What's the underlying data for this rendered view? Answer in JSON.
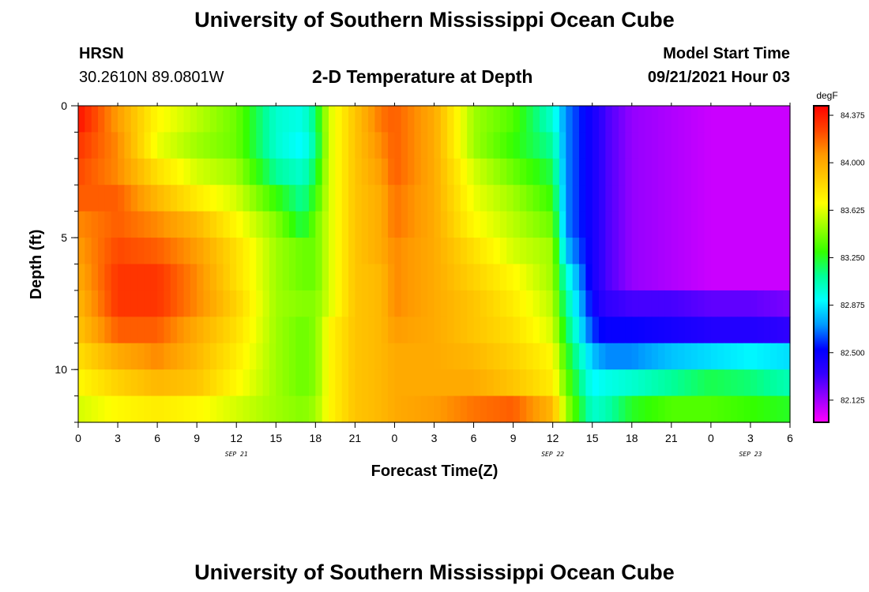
{
  "header": {
    "title": "University of Southern Mississippi Ocean Cube",
    "station_name": "HRSN",
    "station_coords": "30.2610N  89.0801W",
    "plot_title": "2-D Temperature at Depth",
    "model_label": "Model Start Time",
    "model_time": "09/21/2021 Hour 03"
  },
  "footer": {
    "title": "University of Southern Mississippi Ocean Cube"
  },
  "chart_data": {
    "type": "heatmap",
    "title": "2-D Temperature at Depth",
    "xlabel": "Forecast Time(Z)",
    "ylabel": "Depth (ft)",
    "x_ticks": [
      "0",
      "3",
      "6",
      "9",
      "12",
      "15",
      "18",
      "21",
      "0",
      "3",
      "6",
      "9",
      "12",
      "15",
      "18",
      "21",
      "0",
      "3",
      "6"
    ],
    "x_hours_range": [
      0,
      54
    ],
    "date_labels": [
      {
        "text": "SEP 21",
        "hour": 12
      },
      {
        "text": "SEP 22",
        "hour": 36
      },
      {
        "text": "SEP 23",
        "hour": 51
      }
    ],
    "y_ticks": [
      {
        "label": "0",
        "value": 0
      },
      {
        "label": "5",
        "value": 5
      },
      {
        "label": "10",
        "value": 10
      }
    ],
    "y_range": [
      0,
      12
    ],
    "depth_rows": 12,
    "colorbar": {
      "units": "degF",
      "labels": [
        "84.375",
        "84.000",
        "83.625",
        "83.250",
        "82.875",
        "82.500",
        "82.125"
      ],
      "label_values": [
        84.375,
        84.0,
        83.625,
        83.25,
        82.875,
        82.5,
        82.125
      ],
      "range": [
        81.95,
        84.45
      ],
      "colors": [
        "#ff00ff",
        "#9900ff",
        "#3300ff",
        "#0000ff",
        "#0099ff",
        "#00ffff",
        "#00ff99",
        "#33ff00",
        "#99ff00",
        "#ffff00",
        "#ffcc00",
        "#ff9900",
        "#ff4400",
        "#ff0000"
      ]
    },
    "hour_keypoints": [
      0,
      3,
      6,
      9,
      12,
      15,
      17,
      18,
      19,
      21,
      23,
      24,
      27,
      30,
      33,
      36,
      37,
      39,
      40,
      42,
      45,
      48,
      51,
      54
    ],
    "temperature_degF": [
      [
        84.4,
        84.05,
        83.7,
        83.55,
        83.4,
        83.0,
        82.95,
        83.15,
        83.6,
        83.9,
        84.15,
        84.2,
        84.0,
        83.5,
        83.35,
        83.0,
        82.7,
        82.45,
        82.3,
        82.15,
        82.1,
        82.05,
        82.05,
        82.05
      ],
      [
        84.3,
        84.1,
        83.65,
        83.5,
        83.4,
        83.0,
        82.9,
        83.1,
        83.6,
        83.9,
        84.1,
        84.2,
        84.0,
        83.5,
        83.3,
        83.1,
        82.7,
        82.45,
        82.3,
        82.15,
        82.1,
        82.05,
        82.05,
        82.05
      ],
      [
        84.25,
        84.1,
        83.8,
        83.6,
        83.5,
        83.1,
        83.0,
        83.2,
        83.6,
        83.9,
        84.05,
        84.2,
        84.0,
        83.6,
        83.4,
        83.2,
        82.7,
        82.45,
        82.3,
        82.15,
        82.1,
        82.05,
        82.05,
        82.05
      ],
      [
        84.2,
        84.2,
        83.95,
        83.75,
        83.6,
        83.3,
        83.1,
        83.3,
        83.6,
        83.9,
        84.0,
        84.15,
        84.0,
        83.65,
        83.5,
        83.3,
        82.7,
        82.45,
        82.3,
        82.15,
        82.1,
        82.05,
        82.05,
        82.05
      ],
      [
        84.1,
        84.2,
        84.1,
        83.95,
        83.7,
        83.45,
        83.2,
        83.4,
        83.6,
        83.9,
        84.0,
        84.15,
        84.0,
        83.7,
        83.55,
        83.4,
        82.7,
        82.45,
        82.3,
        82.15,
        82.1,
        82.05,
        82.05,
        82.05
      ],
      [
        84.05,
        84.25,
        84.2,
        84.05,
        83.8,
        83.5,
        83.4,
        83.4,
        83.6,
        83.9,
        84.0,
        84.1,
        84.0,
        83.8,
        83.6,
        83.5,
        82.8,
        82.45,
        82.3,
        82.15,
        82.1,
        82.05,
        82.05,
        82.05
      ],
      [
        84.0,
        84.3,
        84.3,
        84.1,
        83.8,
        83.5,
        83.4,
        83.4,
        83.6,
        83.9,
        83.95,
        84.1,
        84.0,
        83.85,
        83.7,
        83.5,
        83.0,
        82.45,
        82.3,
        82.15,
        82.1,
        82.05,
        82.05,
        82.05
      ],
      [
        83.95,
        84.3,
        84.3,
        84.1,
        83.85,
        83.5,
        83.45,
        83.45,
        83.6,
        83.9,
        83.95,
        84.1,
        84.0,
        83.9,
        83.75,
        83.55,
        83.1,
        82.5,
        82.35,
        82.3,
        82.3,
        82.25,
        82.25,
        82.2
      ],
      [
        83.9,
        84.2,
        84.2,
        84.0,
        83.8,
        83.5,
        83.4,
        83.45,
        83.7,
        83.9,
        83.95,
        84.05,
        84.0,
        83.9,
        83.8,
        83.6,
        83.2,
        82.6,
        82.5,
        82.5,
        82.45,
        82.4,
        82.4,
        82.35
      ],
      [
        83.8,
        84.0,
        84.1,
        83.95,
        83.75,
        83.5,
        83.4,
        83.45,
        83.7,
        83.9,
        83.95,
        84.0,
        84.0,
        83.95,
        83.85,
        83.7,
        83.3,
        82.8,
        82.7,
        82.7,
        82.8,
        82.85,
        82.9,
        82.85
      ],
      [
        83.7,
        83.85,
        83.95,
        83.9,
        83.7,
        83.5,
        83.4,
        83.45,
        83.7,
        83.9,
        83.95,
        84.0,
        84.0,
        84.0,
        83.9,
        83.75,
        83.4,
        82.9,
        82.95,
        83.0,
        83.1,
        83.2,
        83.15,
        83.05
      ],
      [
        83.6,
        83.7,
        83.75,
        83.7,
        83.6,
        83.5,
        83.45,
        83.5,
        83.7,
        83.9,
        83.95,
        84.0,
        84.05,
        84.15,
        84.2,
        83.95,
        83.5,
        83.0,
        83.05,
        83.25,
        83.35,
        83.35,
        83.3,
        83.25
      ]
    ]
  }
}
